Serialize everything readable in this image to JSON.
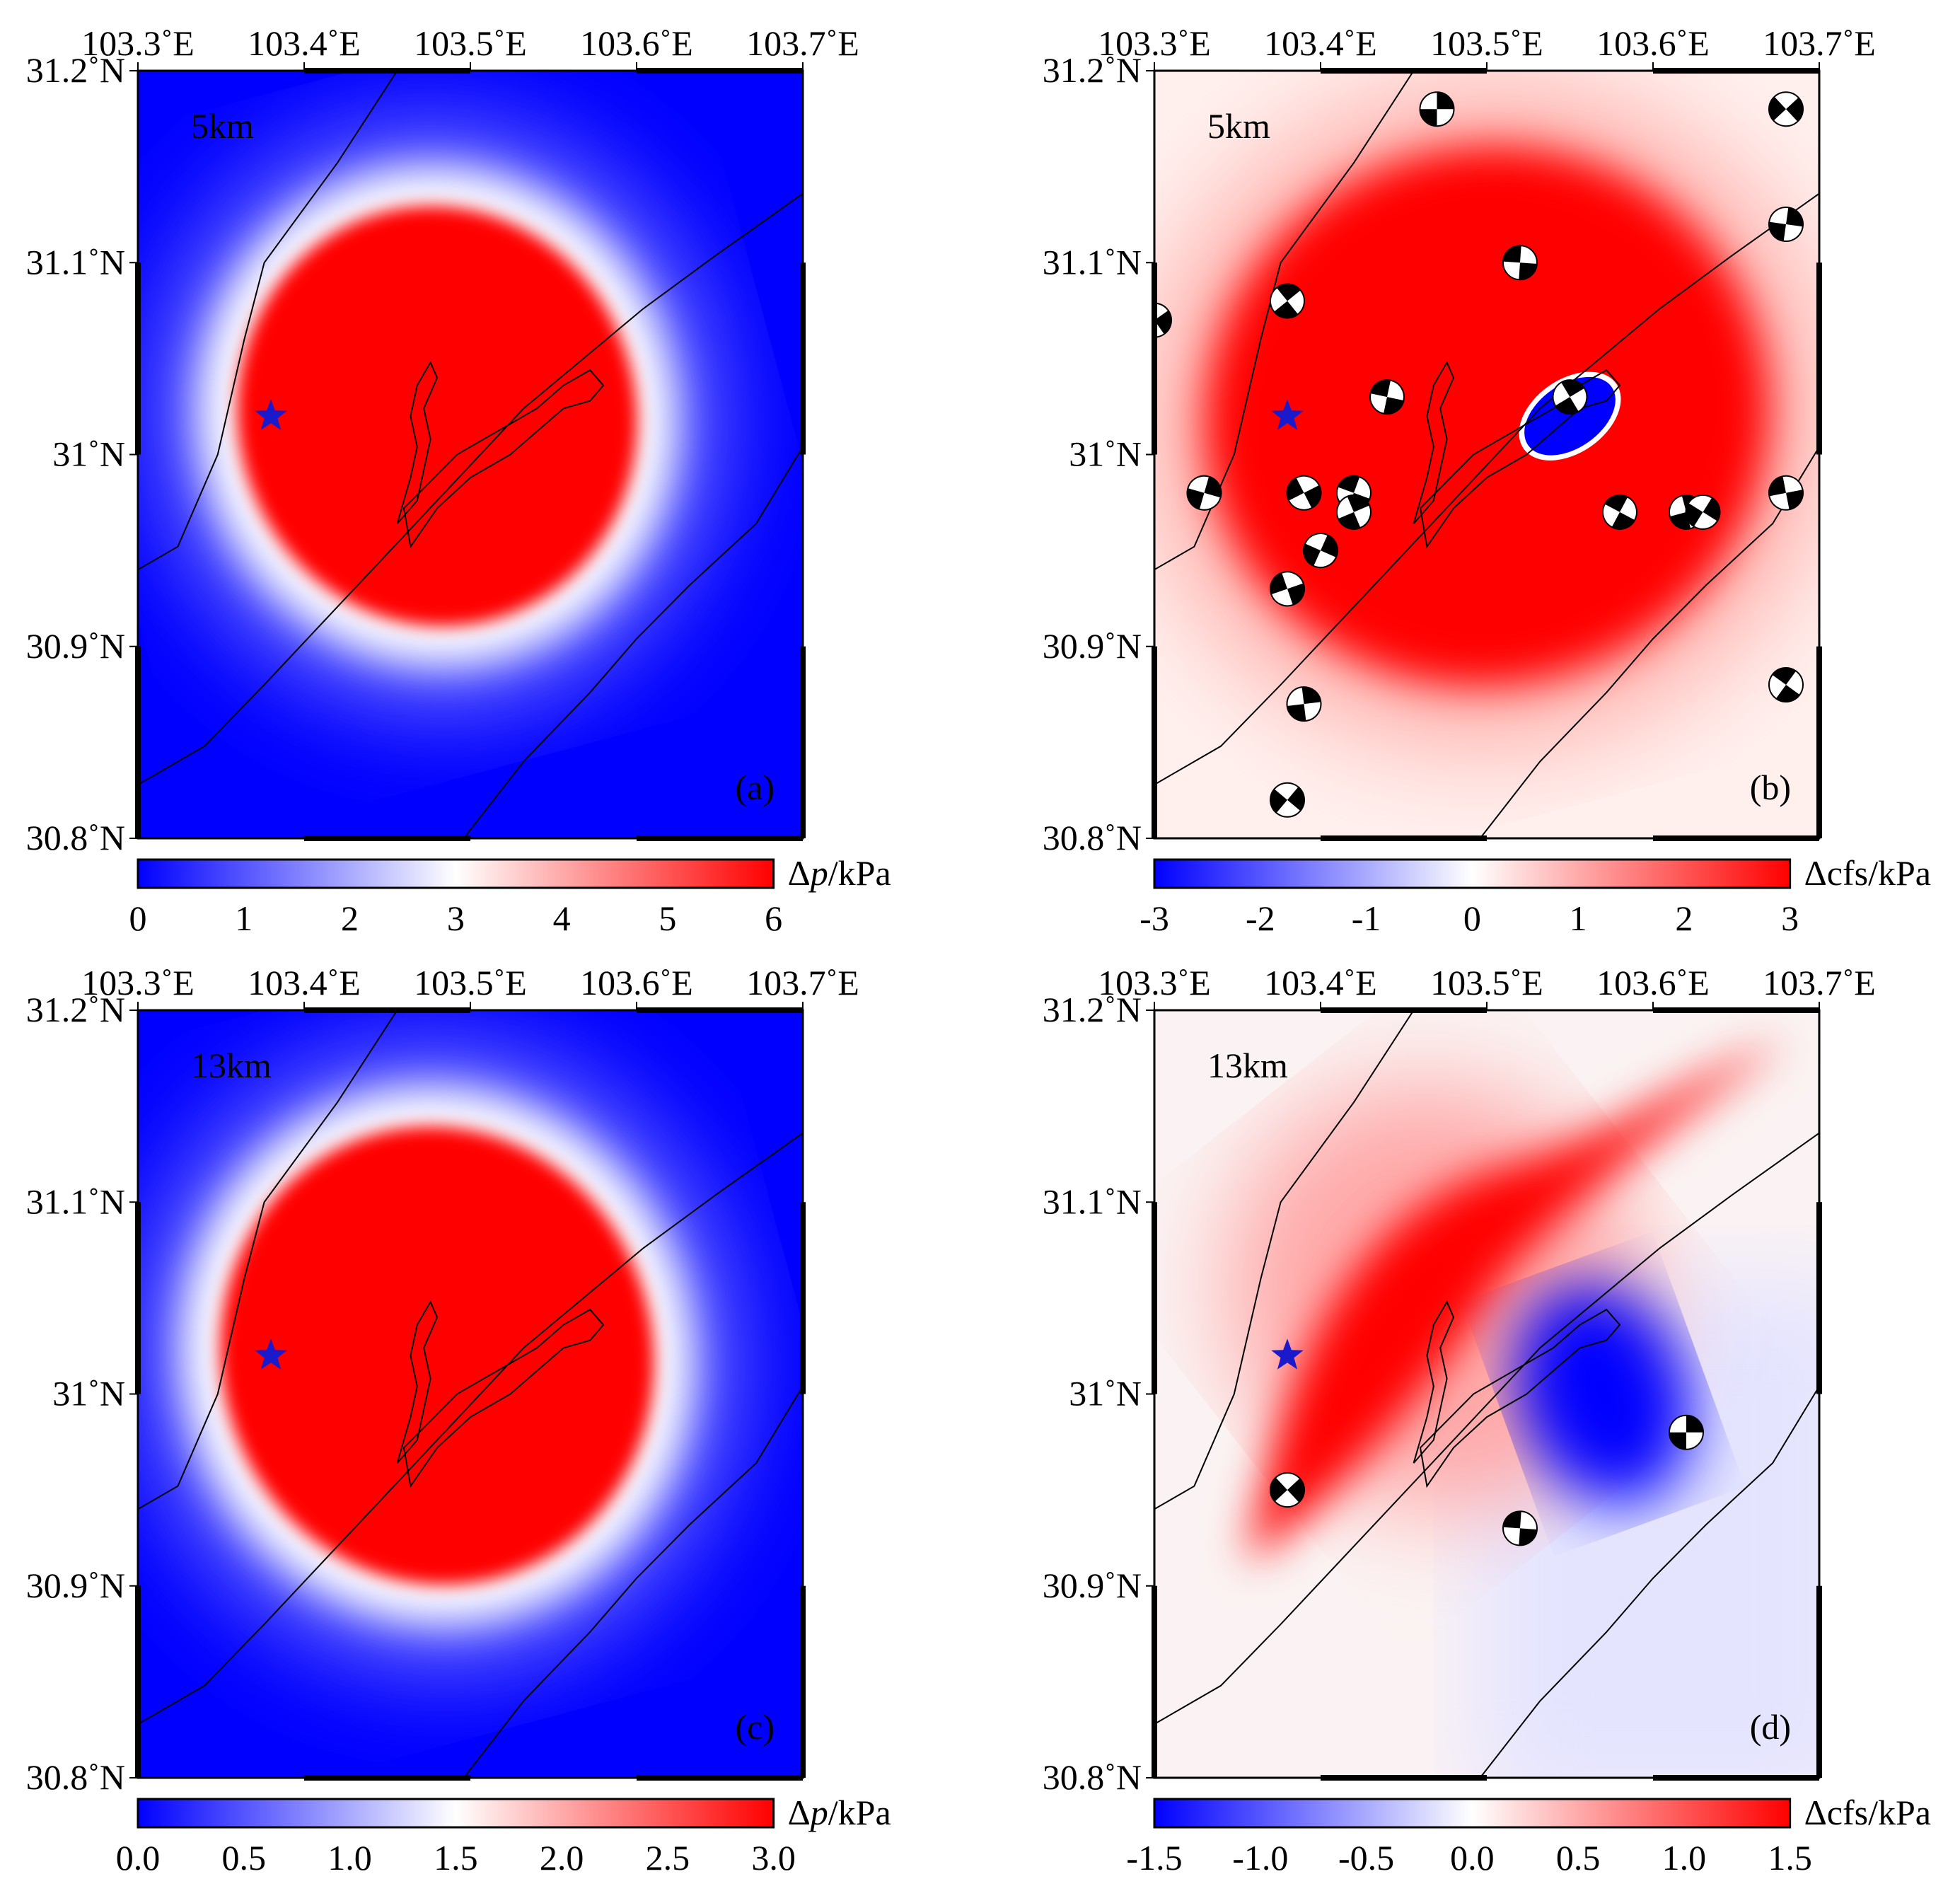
{
  "lon_ticks": [
    "103.3˚E",
    "103.4˚E",
    "103.5˚E",
    "103.6˚E",
    "103.7˚E"
  ],
  "lat_ticks": [
    "31.2˚N",
    "31.1˚N",
    "31˚N",
    "30.9˚N",
    "30.8˚N"
  ],
  "extent": {
    "lon": [
      103.3,
      103.7
    ],
    "lat": [
      30.8,
      31.2
    ]
  },
  "epicenter": {
    "lon": 103.38,
    "lat": 31.02,
    "marker": "star",
    "color": "#1a1acc"
  },
  "colors": {
    "negative": "#0000ff",
    "zero": "#ffffff",
    "positive": "#ff0000"
  },
  "panels": [
    {
      "id": "a",
      "label": "(a)",
      "depth": "5km",
      "quantity": "Δp",
      "colorbar": {
        "title_symbol": "Δ",
        "title_var": "p",
        "title_unit": "/kPa",
        "min": 0,
        "max": 6,
        "ticks": [
          "0",
          "1",
          "2",
          "3",
          "4",
          "5",
          "6"
        ]
      },
      "field": {
        "type": "pressure",
        "center": [
          103.48,
          31.02
        ],
        "radius": [
          0.12,
          0.11
        ],
        "rotation": -15
      }
    },
    {
      "id": "b",
      "label": "(b)",
      "depth": "5km",
      "quantity": "Δcfs",
      "colorbar": {
        "title_symbol": "Δ",
        "title_var": "cfs",
        "title_unit": "/kPa",
        "min": -3,
        "max": 3,
        "ticks": [
          "-3",
          "-2",
          "-1",
          "0",
          "1",
          "2",
          "3"
        ]
      },
      "field": {
        "type": "cfs5",
        "center": [
          103.5,
          31.02
        ],
        "radius": [
          0.17,
          0.14
        ],
        "rotation": -15,
        "negative_spot": [
          103.55,
          31.02
        ]
      },
      "focal_mechanisms": [
        {
          "lon": 103.47,
          "lat": 31.18
        },
        {
          "lon": 103.68,
          "lat": 31.18
        },
        {
          "lon": 103.52,
          "lat": 31.1
        },
        {
          "lon": 103.38,
          "lat": 31.08
        },
        {
          "lon": 103.68,
          "lat": 31.12
        },
        {
          "lon": 103.3,
          "lat": 31.07
        },
        {
          "lon": 103.44,
          "lat": 31.03
        },
        {
          "lon": 103.55,
          "lat": 31.03
        },
        {
          "lon": 103.33,
          "lat": 30.98
        },
        {
          "lon": 103.39,
          "lat": 30.98
        },
        {
          "lon": 103.42,
          "lat": 30.98
        },
        {
          "lon": 103.42,
          "lat": 30.97
        },
        {
          "lon": 103.4,
          "lat": 30.95
        },
        {
          "lon": 103.38,
          "lat": 30.93
        },
        {
          "lon": 103.58,
          "lat": 30.97
        },
        {
          "lon": 103.62,
          "lat": 30.97
        },
        {
          "lon": 103.63,
          "lat": 30.97
        },
        {
          "lon": 103.68,
          "lat": 30.98
        },
        {
          "lon": 103.68,
          "lat": 30.88
        },
        {
          "lon": 103.39,
          "lat": 30.87
        },
        {
          "lon": 103.38,
          "lat": 30.82
        }
      ]
    },
    {
      "id": "c",
      "label": "(c)",
      "depth": "13km",
      "quantity": "Δp",
      "colorbar": {
        "title_symbol": "Δ",
        "title_var": "p",
        "title_unit": "/kPa",
        "min": 0.0,
        "max": 3.0,
        "ticks": [
          "0.0",
          "0.5",
          "1.0",
          "1.5",
          "2.0",
          "2.5",
          "3.0"
        ]
      },
      "field": {
        "type": "pressure",
        "center": [
          103.48,
          31.02
        ],
        "radius": [
          0.13,
          0.12
        ],
        "rotation": -15
      }
    },
    {
      "id": "d",
      "label": "(d)",
      "depth": "13km",
      "quantity": "Δcfs",
      "colorbar": {
        "title_symbol": "Δ",
        "title_var": "cfs",
        "title_unit": "/kPa",
        "min": -1.5,
        "max": 1.5,
        "ticks": [
          "-1.5",
          "-1.0",
          "-0.5",
          "0.0",
          "0.5",
          "1.0",
          "1.5"
        ]
      },
      "field": {
        "type": "cfs13",
        "positive_center": [
          103.47,
          31.05
        ],
        "negative_center": [
          103.57,
          31.0
        ]
      },
      "focal_mechanisms": [
        {
          "lon": 103.62,
          "lat": 30.98
        },
        {
          "lon": 103.38,
          "lat": 30.95
        },
        {
          "lon": 103.52,
          "lat": 30.93
        }
      ]
    }
  ]
}
